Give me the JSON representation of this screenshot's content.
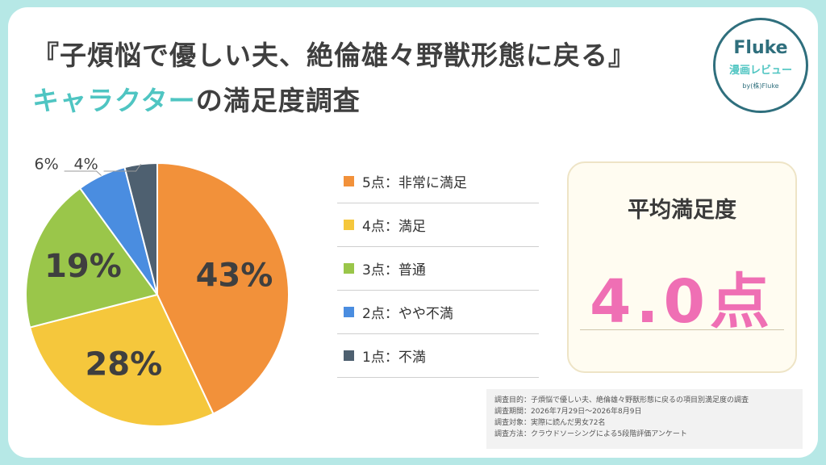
{
  "header": {
    "title_line1": "『子煩悩で優しい夫、絶倫雄々野獣形態に戻る』",
    "title_line2_accent": "キャラクター",
    "title_line2_rest": "の満足度調査"
  },
  "logo": {
    "name": "Fluke",
    "subtitle": "漫画レビュー",
    "byline": "by(株)Fluke"
  },
  "colors": {
    "accent": "#4fc5c2",
    "score5": "#f2913a",
    "score4": "#f5c73c",
    "score3": "#9ac64a",
    "score2": "#4a8de0",
    "score1": "#4e6070",
    "average": "#ef6fb4"
  },
  "chart_data": {
    "type": "pie",
    "title": "",
    "slices": [
      {
        "label": "5点：非常に満足",
        "value": 43,
        "display": "43%",
        "color": "#f2913a"
      },
      {
        "label": "4点：満足",
        "value": 28,
        "display": "28%",
        "color": "#f5c73c"
      },
      {
        "label": "3点：普通",
        "value": 19,
        "display": "19%",
        "color": "#9ac64a"
      },
      {
        "label": "2点：やや不満",
        "value": 6,
        "display": "6%",
        "color": "#4a8de0"
      },
      {
        "label": "1点：不満",
        "value": 4,
        "display": "4%",
        "color": "#4e6070"
      }
    ],
    "legend_placement": "right"
  },
  "summary": {
    "label": "平均満足度",
    "value": "4.0点"
  },
  "notes": [
    "調査目的：子煩悩で優しい夫、絶倫雄々野獣形態に戻るの項目別満足度の調査",
    "調査期間：2026年7月29日～2026年8月9日",
    "調査対象：実際に読んだ男女72名",
    "調査方法：クラウドソーシングによる5段階評価アンケート"
  ]
}
